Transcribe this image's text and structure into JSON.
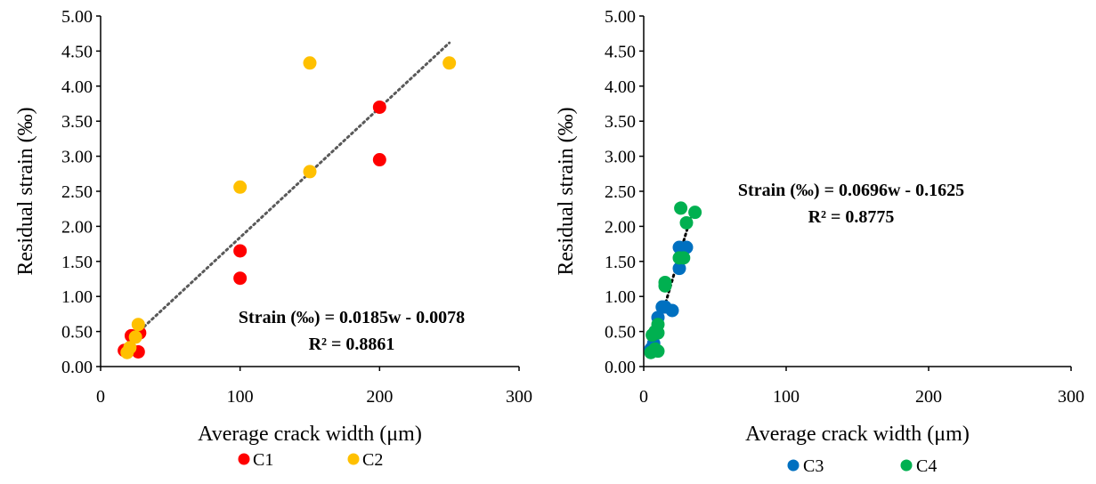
{
  "chart_data": [
    {
      "type": "scatter",
      "xlabel": "Average crack width (μm)",
      "ylabel": "Residual strain (‰)",
      "xlim": [
        0,
        300
      ],
      "ylim": [
        0,
        5
      ],
      "x_ticks": [
        "0",
        "100",
        "200",
        "300"
      ],
      "y_ticks": [
        "0.00",
        "0.50",
        "1.00",
        "1.50",
        "2.00",
        "2.50",
        "3.00",
        "3.50",
        "4.00",
        "4.50",
        "5.00"
      ],
      "grid": false,
      "legend_position": "bottom",
      "series": [
        {
          "name": "C1",
          "color": "#FF0000",
          "points": [
            [
              17,
              0.23
            ],
            [
              22,
              0.44
            ],
            [
              27,
              0.21
            ],
            [
              28,
              0.48
            ],
            [
              100,
              1.65
            ],
            [
              100,
              1.26
            ],
            [
              200,
              3.7
            ],
            [
              200,
              2.95
            ]
          ]
        },
        {
          "name": "C2",
          "color": "#FFC000",
          "points": [
            [
              19,
              0.2
            ],
            [
              21,
              0.27
            ],
            [
              25,
              0.42
            ],
            [
              27,
              0.6
            ],
            [
              100,
              2.56
            ],
            [
              150,
              4.33
            ],
            [
              150,
              2.78
            ],
            [
              250,
              4.33
            ]
          ]
        }
      ],
      "trendline": {
        "color": "#595959",
        "style": "dotted",
        "slope": 0.0185,
        "intercept": -0.0078,
        "x_range": [
          20,
          250
        ],
        "equation": "Strain (‰) = 0.0185w - 0.0078",
        "r2": "R² = 0.8861"
      }
    },
    {
      "type": "scatter",
      "xlabel": "Average crack width (μm)",
      "ylabel": "Residual strain (‰)",
      "xlim": [
        0,
        300
      ],
      "ylim": [
        0,
        5
      ],
      "x_ticks": [
        "0",
        "100",
        "200",
        "300"
      ],
      "y_ticks": [
        "0.00",
        "0.50",
        "1.00",
        "1.50",
        "2.00",
        "2.50",
        "3.00",
        "3.50",
        "4.00",
        "4.50",
        "5.00"
      ],
      "grid": false,
      "legend_position": "bottom",
      "series": [
        {
          "name": "C3",
          "color": "#0070C0",
          "points": [
            [
              5,
              0.25
            ],
            [
              7,
              0.33
            ],
            [
              10,
              0.7
            ],
            [
              13,
              0.85
            ],
            [
              15,
              0.85
            ],
            [
              20,
              0.8
            ],
            [
              25,
              1.4
            ],
            [
              25,
              1.7
            ],
            [
              30,
              1.7
            ]
          ]
        },
        {
          "name": "C4",
          "color": "#00B050",
          "points": [
            [
              5,
              0.2
            ],
            [
              6,
              0.45
            ],
            [
              8,
              0.5
            ],
            [
              8,
              0.25
            ],
            [
              10,
              0.22
            ],
            [
              10,
              0.48
            ],
            [
              10,
              0.6
            ],
            [
              15,
              1.15
            ],
            [
              15,
              1.2
            ],
            [
              25,
              1.55
            ],
            [
              26,
              2.26
            ],
            [
              28,
              1.55
            ],
            [
              30,
              2.05
            ],
            [
              36,
              2.2
            ]
          ]
        }
      ],
      "trendline": {
        "color": "#000000",
        "style": "dotted",
        "slope": 0.0696,
        "intercept": -0.1625,
        "x_range": [
          5,
          34
        ],
        "equation": "Strain (‰) = 0.0696w - 0.1625",
        "r2": "R² = 0.8775"
      }
    }
  ]
}
